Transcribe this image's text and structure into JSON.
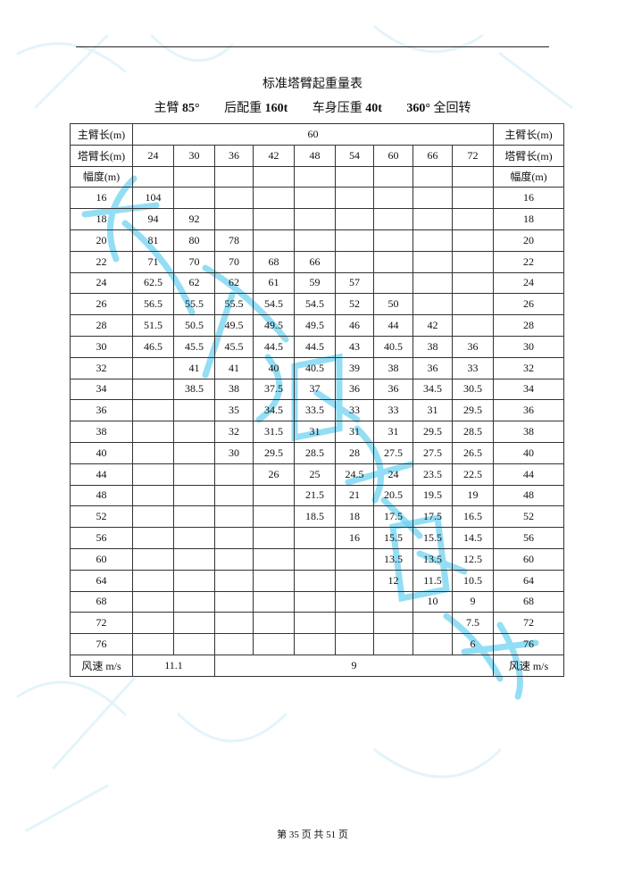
{
  "page": {
    "title": "标准塔臂起重量表",
    "specs": [
      {
        "label": "主臂 ",
        "value": "85°"
      },
      {
        "label": "后配重 ",
        "value": "160t"
      },
      {
        "label": "车身压重 ",
        "value": "40t"
      },
      {
        "label": "全回转",
        "value": "360°"
      }
    ],
    "footer": "第 35 页 共 51 页",
    "watermark": "成都巨象吊装"
  },
  "table": {
    "main_boom_label": "主臂长(m)",
    "main_boom_value": "60",
    "tower_boom_label": "塔臂长(m)",
    "tower_boom_lengths": [
      "24",
      "30",
      "36",
      "42",
      "48",
      "54",
      "60",
      "66",
      "72"
    ],
    "radius_label": "幅度(m)",
    "rows": [
      {
        "r": "16",
        "v": [
          "104",
          "",
          "",
          "",
          "",
          "",
          "",
          "",
          ""
        ]
      },
      {
        "r": "18",
        "v": [
          "94",
          "92",
          "",
          "",
          "",
          "",
          "",
          "",
          ""
        ]
      },
      {
        "r": "20",
        "v": [
          "81",
          "80",
          "78",
          "",
          "",
          "",
          "",
          "",
          ""
        ]
      },
      {
        "r": "22",
        "v": [
          "71",
          "70",
          "70",
          "68",
          "66",
          "",
          "",
          "",
          ""
        ]
      },
      {
        "r": "24",
        "v": [
          "62.5",
          "62",
          "62",
          "61",
          "59",
          "57",
          "",
          "",
          ""
        ]
      },
      {
        "r": "26",
        "v": [
          "56.5",
          "55.5",
          "55.5",
          "54.5",
          "54.5",
          "52",
          "50",
          "",
          ""
        ]
      },
      {
        "r": "28",
        "v": [
          "51.5",
          "50.5",
          "49.5",
          "49.5",
          "49.5",
          "46",
          "44",
          "42",
          ""
        ]
      },
      {
        "r": "30",
        "v": [
          "46.5",
          "45.5",
          "45.5",
          "44.5",
          "44.5",
          "43",
          "40.5",
          "38",
          "36"
        ]
      },
      {
        "r": "32",
        "v": [
          "",
          "41",
          "41",
          "40",
          "40.5",
          "39",
          "38",
          "36",
          "33"
        ]
      },
      {
        "r": "34",
        "v": [
          "",
          "38.5",
          "38",
          "37.5",
          "37",
          "36",
          "36",
          "34.5",
          "30.5"
        ]
      },
      {
        "r": "36",
        "v": [
          "",
          "",
          "35",
          "34.5",
          "33.5",
          "33",
          "33",
          "31",
          "29.5"
        ]
      },
      {
        "r": "38",
        "v": [
          "",
          "",
          "32",
          "31.5",
          "31",
          "31",
          "31",
          "29.5",
          "28.5"
        ]
      },
      {
        "r": "40",
        "v": [
          "",
          "",
          "30",
          "29.5",
          "28.5",
          "28",
          "27.5",
          "27.5",
          "26.5"
        ]
      },
      {
        "r": "44",
        "v": [
          "",
          "",
          "",
          "26",
          "25",
          "24.5",
          "24",
          "23.5",
          "22.5"
        ]
      },
      {
        "r": "48",
        "v": [
          "",
          "",
          "",
          "",
          "21.5",
          "21",
          "20.5",
          "19.5",
          "19"
        ]
      },
      {
        "r": "52",
        "v": [
          "",
          "",
          "",
          "",
          "18.5",
          "18",
          "17.5",
          "17.5",
          "16.5"
        ]
      },
      {
        "r": "56",
        "v": [
          "",
          "",
          "",
          "",
          "",
          "16",
          "15.5",
          "15.5",
          "14.5"
        ]
      },
      {
        "r": "60",
        "v": [
          "",
          "",
          "",
          "",
          "",
          "",
          "13.5",
          "13.5",
          "12.5"
        ]
      },
      {
        "r": "64",
        "v": [
          "",
          "",
          "",
          "",
          "",
          "",
          "12",
          "11.5",
          "10.5"
        ]
      },
      {
        "r": "68",
        "v": [
          "",
          "",
          "",
          "",
          "",
          "",
          "",
          "10",
          "9"
        ]
      },
      {
        "r": "72",
        "v": [
          "",
          "",
          "",
          "",
          "",
          "",
          "",
          "",
          "7.5"
        ]
      },
      {
        "r": "76",
        "v": [
          "",
          "",
          "",
          "",
          "",
          "",
          "",
          "",
          "6"
        ]
      }
    ],
    "wind_label": "风速 m/s",
    "wind_values": [
      "11.1",
      "9"
    ]
  }
}
